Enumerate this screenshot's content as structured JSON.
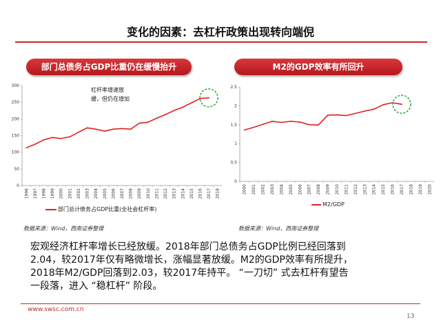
{
  "page": {
    "title": "变化的因素：去杠杆政策出现转向端倪",
    "left_heading": "部门总债务占GDP比重仍在缓慢抬升",
    "right_heading": "M2的GDP效率有所回升",
    "source_left": "数据来源：Wind，西南证券整理",
    "source_right": "数据来源：Wind，西南证券整理",
    "body_lines": [
      "宏观经济杠杆率增长已经放缓。2018年部门总债务占GDP比例已经回落到",
      "2.04，较2017年仅有略微增长，涨幅显著放缓。M2的GDP效率有所提升，",
      "2018年M2/GDP回落到2.03，较2017年持平。 “一刀切” 式去杠杆有望告",
      "一段落，进入 “稳杠杆” 阶段。"
    ],
    "footer_url": "www.swsc.com.cn",
    "page_number": "13",
    "accent_color": "#c0282d",
    "highlight_color": "#2eaa3c"
  },
  "chart_data": [
    {
      "type": "line",
      "series_name": "部门总计债务占GDP比重(全社会杠杆率)",
      "annotation_lines": [
        "杠杆率增速放",
        "缓，但仍在增加"
      ],
      "x": [
        "1996",
        "1997",
        "1998",
        "1999",
        "2000",
        "2001",
        "2002",
        "2003",
        "2004",
        "2005",
        "2006",
        "2007",
        "2008",
        "2009",
        "2010",
        "2011",
        "2012",
        "2013",
        "2014",
        "2015",
        "2016",
        "2017",
        "2018"
      ],
      "values": [
        113,
        124,
        137,
        144,
        141,
        146,
        160,
        173,
        169,
        163,
        169,
        171,
        169,
        187,
        190,
        202,
        213,
        225,
        235,
        248,
        261,
        263,
        null
      ],
      "yticks": [
        "0",
        "50",
        "100",
        "150",
        "200",
        "250",
        "300"
      ],
      "ylim": [
        0,
        300
      ],
      "color": "#e02020"
    },
    {
      "type": "line",
      "series_name": "M2/GDP",
      "x": [
        "2000",
        "2001",
        "2002",
        "2003",
        "2004",
        "2005",
        "2006",
        "2007",
        "2008",
        "2009",
        "2010",
        "2011",
        "2012",
        "2013",
        "2014",
        "2015",
        "2016",
        "2017",
        "2018",
        "2019",
        "2020"
      ],
      "values": [
        1.36,
        1.43,
        1.51,
        1.59,
        1.56,
        1.59,
        1.57,
        1.5,
        1.49,
        1.75,
        1.76,
        1.74,
        1.8,
        1.86,
        1.91,
        2.03,
        2.08,
        2.04,
        null,
        null,
        null
      ],
      "yticks": [
        "0",
        "0.5",
        "1",
        "1.5",
        "2",
        "2.5"
      ],
      "ylim": [
        0,
        2.5
      ],
      "color": "#e02020"
    }
  ]
}
